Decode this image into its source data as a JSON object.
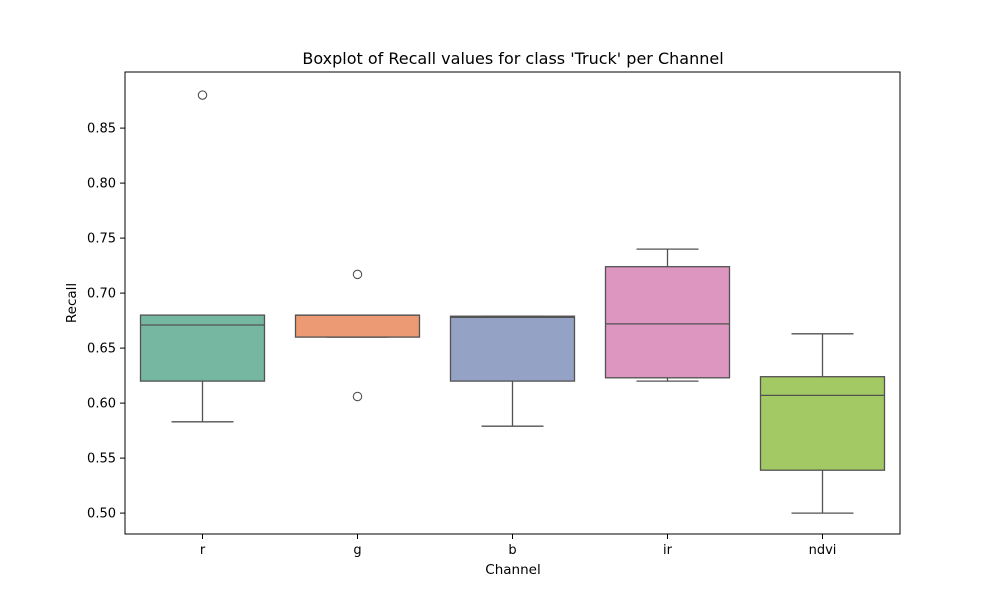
{
  "chart_data": {
    "type": "boxplot",
    "title": "Boxplot of Recall values for class 'Truck' per Channel",
    "xlabel": "Channel",
    "ylabel": "Recall",
    "ylim": [
      0.481,
      0.901
    ],
    "yticks": [
      "0.50",
      "0.55",
      "0.60",
      "0.65",
      "0.70",
      "0.75",
      "0.80",
      "0.85"
    ],
    "grid": false,
    "legend": "none",
    "categories": [
      "r",
      "g",
      "b",
      "ir",
      "ndvi"
    ],
    "boxes": [
      {
        "category": "r",
        "whisker_low": 0.583,
        "q1": 0.62,
        "median": 0.671,
        "q3": 0.68,
        "whisker_high": 0.68,
        "outliers": [
          0.88
        ],
        "color": "#76b7a2"
      },
      {
        "category": "g",
        "whisker_low": 0.66,
        "q1": 0.66,
        "median": 0.68,
        "q3": 0.68,
        "whisker_high": 0.68,
        "outliers": [
          0.717,
          0.606
        ],
        "color": "#ec9a73"
      },
      {
        "category": "b",
        "whisker_low": 0.579,
        "q1": 0.62,
        "median": 0.678,
        "q3": 0.679,
        "whisker_high": 0.679,
        "outliers": [],
        "color": "#94a3c5"
      },
      {
        "category": "ir",
        "whisker_low": 0.62,
        "q1": 0.623,
        "median": 0.672,
        "q3": 0.724,
        "whisker_high": 0.74,
        "outliers": [],
        "color": "#dc96c0"
      },
      {
        "category": "ndvi",
        "whisker_low": 0.5,
        "q1": 0.539,
        "median": 0.607,
        "q3": 0.624,
        "whisker_high": 0.663,
        "outliers": [],
        "color": "#a2c963"
      }
    ],
    "line_color": "#525252"
  }
}
